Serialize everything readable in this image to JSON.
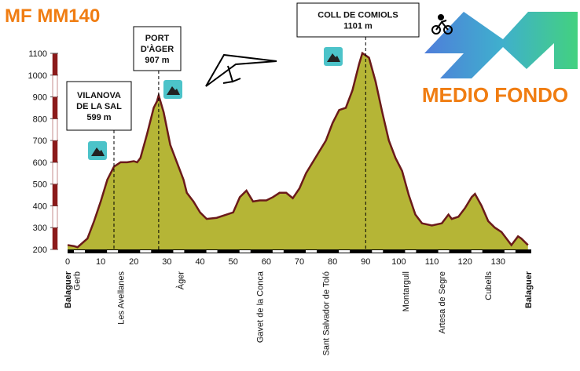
{
  "chart_data": {
    "type": "area",
    "title": "MF MM140",
    "subtitle": "MEDIO FONDO",
    "x": [
      0,
      2,
      3,
      6,
      8,
      10,
      12,
      14,
      16,
      18,
      20,
      21,
      22,
      24,
      26,
      27,
      27.5,
      29,
      31,
      33,
      35,
      36,
      38,
      40,
      42,
      45,
      48,
      50,
      52,
      54,
      56,
      58,
      60,
      62,
      64,
      66,
      68,
      70,
      72,
      74,
      76,
      78,
      80,
      82,
      84,
      86,
      88,
      89,
      91,
      93,
      95,
      97,
      99,
      101,
      103,
      105,
      107,
      110,
      113,
      115,
      116,
      118,
      120,
      122,
      123,
      125,
      127,
      129,
      131,
      133,
      134,
      136,
      137,
      139
    ],
    "series": [
      {
        "color": "#b5b536",
        "values": [
          220,
          215,
          210,
          250,
          330,
          420,
          520,
          580,
          600,
          600,
          605,
          600,
          620,
          730,
          850,
          880,
          907,
          830,
          680,
          600,
          520,
          460,
          420,
          370,
          340,
          345,
          360,
          370,
          440,
          470,
          420,
          425,
          425,
          440,
          460,
          460,
          435,
          480,
          550,
          600,
          650,
          700,
          780,
          840,
          850,
          930,
          1050,
          1101,
          1080,
          970,
          830,
          700,
          620,
          560,
          450,
          360,
          320,
          310,
          320,
          360,
          340,
          350,
          390,
          440,
          455,
          400,
          330,
          300,
          280,
          240,
          220,
          260,
          250,
          220
        ]
      }
    ],
    "xlim": [
      0,
      140
    ],
    "ylim": [
      200,
      1100
    ],
    "xticks": [
      0,
      10,
      20,
      30,
      40,
      50,
      60,
      70,
      80,
      90,
      100,
      110,
      120,
      130
    ],
    "yticks": [
      200,
      300,
      400,
      500,
      600,
      700,
      800,
      900,
      1000,
      1100
    ],
    "annotations": [
      {
        "label": [
          "VILANOVA",
          "DE LA SAL"
        ],
        "x": 14,
        "value": 599,
        "value_label": "599 m"
      },
      {
        "label": [
          "PORT",
          "D'ÀGER"
        ],
        "x": 27.5,
        "value": 907,
        "value_label": "907 m"
      },
      {
        "label": [
          "COLL DE COMIOLS"
        ],
        "x": 90,
        "value": 1101,
        "value_label": "1101 m"
      }
    ],
    "places": [
      {
        "name": "Balaguer",
        "x": 0,
        "bold": true
      },
      {
        "name": "Gerb",
        "x": 2.7,
        "bold": false
      },
      {
        "name": "Les Avellanes",
        "x": 16,
        "bold": false
      },
      {
        "name": "Àger",
        "x": 34,
        "bold": false
      },
      {
        "name": "Gavet de la Conca",
        "x": 58,
        "bold": false
      },
      {
        "name": "Sant Salvador de Toló",
        "x": 78,
        "bold": false
      },
      {
        "name": "Montargull",
        "x": 102,
        "bold": false
      },
      {
        "name": "Artesa de Segre",
        "x": 113,
        "bold": false
      },
      {
        "name": "Cubells",
        "x": 127,
        "bold": false
      },
      {
        "name": "Balaguer",
        "x": 139,
        "bold": true
      }
    ]
  }
}
